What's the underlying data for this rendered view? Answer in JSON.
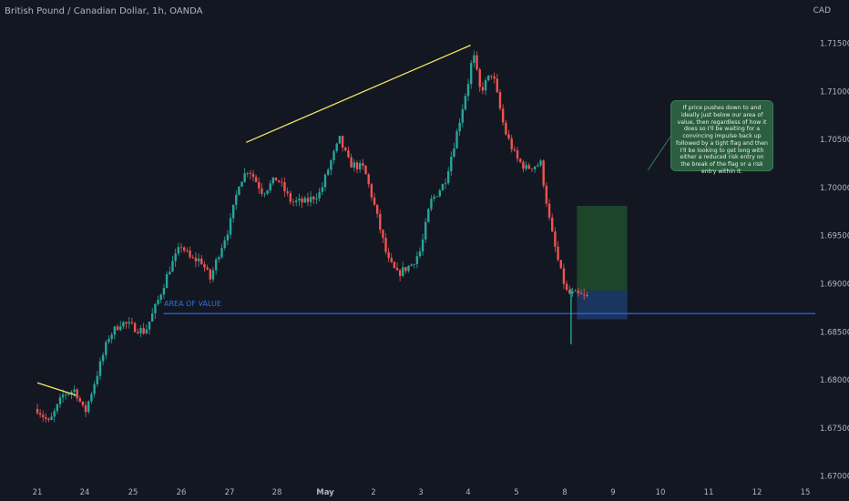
{
  "header": {
    "title": "British Pound / Canadian Dollar, 1h, OANDA",
    "currency": "CAD"
  },
  "annotations": {
    "area_label": "AREA OF VALUE",
    "note": "If price pushes down to and ideally just below our area of value, then regardless of how it does so I'll be waiting for a convincing impulse back up followed by a tight flag and then I'll be looking to get long with either a reduced risk entry on the break of the flag or a risk entry within it."
  },
  "colors": {
    "background": "#131722",
    "bull": "#26a69a",
    "bear": "#ef5350",
    "trendline": "#f5e663",
    "area_line": "#2962ff",
    "target_zone": "#1e4d2b",
    "risk_zone": "#1c3a66",
    "note_bg": "#2c5f3f"
  },
  "chart_data": {
    "type": "candlestick",
    "symbol": "British Pound / Canadian Dollar",
    "interval": "1h",
    "source": "OANDA",
    "y_axis_ticks": [
      "1.71500",
      "1.71000",
      "1.70500",
      "1.70000",
      "1.69500",
      "1.69000",
      "1.68500",
      "1.68000",
      "1.67500",
      "1.67000"
    ],
    "x_axis_ticks": [
      "21",
      "24",
      "25",
      "26",
      "27",
      "28",
      "May",
      "2",
      "3",
      "4",
      "5",
      "8",
      "9",
      "10",
      "11",
      "12",
      "15"
    ],
    "ylim": [
      1.6695,
      1.7195
    ],
    "area_of_value": 1.6869,
    "trendlines": [
      {
        "from": {
          "x": 0,
          "y": 1.6797
        },
        "to": {
          "x": 0.82,
          "y": 1.6784
        }
      },
      {
        "from": {
          "x": 4.35,
          "y": 1.7047
        },
        "to": {
          "x": 9.05,
          "y": 1.7148
        }
      }
    ],
    "position": {
      "entry": 1.6893,
      "stop": 1.6863,
      "target": 1.6981,
      "start_x": 11.25,
      "end_x": 12.3
    },
    "path_points": [
      [
        0.0,
        1.677
      ],
      [
        0.25,
        1.6755
      ],
      [
        0.55,
        1.6785
      ],
      [
        0.8,
        1.679
      ],
      [
        1.0,
        1.6765
      ],
      [
        1.25,
        1.6805
      ],
      [
        1.5,
        1.6845
      ],
      [
        1.75,
        1.686
      ],
      [
        2.0,
        1.6855
      ],
      [
        2.25,
        1.685
      ],
      [
        2.5,
        1.688
      ],
      [
        2.75,
        1.6915
      ],
      [
        3.0,
        1.694
      ],
      [
        3.2,
        1.6925
      ],
      [
        3.4,
        1.6925
      ],
      [
        3.6,
        1.6905
      ],
      [
        3.8,
        1.6935
      ],
      [
        4.0,
        1.696
      ],
      [
        4.2,
        1.7005
      ],
      [
        4.4,
        1.702
      ],
      [
        4.7,
        1.6995
      ],
      [
        5.0,
        1.701
      ],
      [
        5.3,
        1.6985
      ],
      [
        5.6,
        1.6985
      ],
      [
        5.9,
        1.6995
      ],
      [
        6.1,
        1.7025
      ],
      [
        6.3,
        1.705
      ],
      [
        6.5,
        1.7025
      ],
      [
        6.8,
        1.702
      ],
      [
        7.0,
        1.6985
      ],
      [
        7.3,
        1.6925
      ],
      [
        7.5,
        1.691
      ],
      [
        7.8,
        1.692
      ],
      [
        8.0,
        1.6935
      ],
      [
        8.2,
        1.6985
      ],
      [
        8.5,
        1.7005
      ],
      [
        8.75,
        1.7055
      ],
      [
        9.0,
        1.711
      ],
      [
        9.1,
        1.714
      ],
      [
        9.25,
        1.71
      ],
      [
        9.5,
        1.712
      ],
      [
        9.75,
        1.706
      ],
      [
        10.0,
        1.703
      ],
      [
        10.2,
        1.702
      ],
      [
        10.5,
        1.7025
      ],
      [
        10.7,
        1.696
      ],
      [
        10.9,
        1.6915
      ],
      [
        11.05,
        1.689
      ],
      [
        11.3,
        1.6888
      ],
      [
        11.5,
        1.6885
      ]
    ],
    "spike_low": {
      "x": 11.13,
      "y": 1.6837
    }
  }
}
